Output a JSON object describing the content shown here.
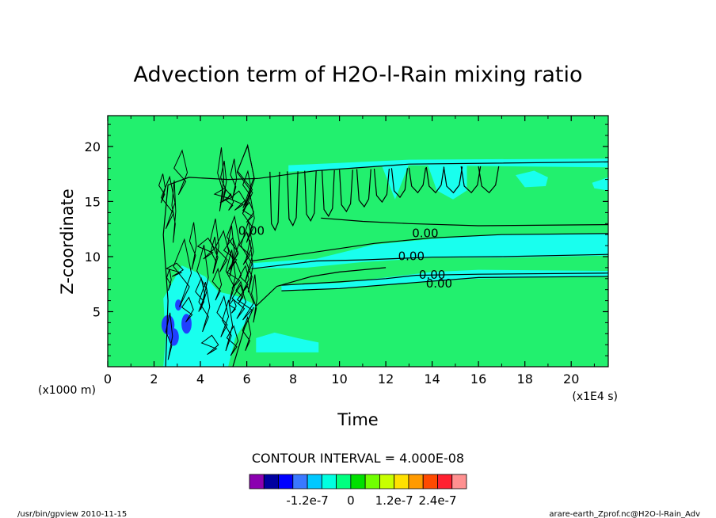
{
  "chart_data": {
    "type": "heatmap",
    "title": "Advection term of H2O-l-Rain mixing ratio",
    "xlabel": "Time",
    "ylabel": "Z-coordinate",
    "x_unit": "(x1E4 s)",
    "y_unit": "(x1000 m)",
    "xlim": [
      0,
      21.6
    ],
    "ylim": [
      0,
      22.8
    ],
    "x_ticks": [
      0,
      2,
      4,
      6,
      8,
      10,
      12,
      14,
      16,
      18,
      20
    ],
    "y_ticks": [
      5,
      10,
      15,
      20
    ],
    "contour_interval_text": "CONTOUR INTERVAL = 4.000E-08",
    "contour_labels": [
      "0.00",
      "0.00",
      "0.00",
      "0.00",
      "0.00"
    ],
    "colorbar": {
      "colors": [
        "#8b00b0",
        "#0000a0",
        "#0000ff",
        "#3a78ff",
        "#00c8ff",
        "#00ffe0",
        "#00ff80",
        "#00e000",
        "#70ff00",
        "#c8ff00",
        "#ffe000",
        "#ff9a00",
        "#ff4a00",
        "#ff2030",
        "#ff9090"
      ],
      "tick_labels": [
        "-1.2e-7",
        "0",
        "1.2e-7",
        "2.4e-7"
      ],
      "tick_positions": [
        -1.2e-07,
        0,
        1.2e-07,
        2.4e-07
      ]
    },
    "background_color": "#22f06e",
    "negative_color": "#19ffee",
    "strong_negative_color": "#2040ff"
  },
  "footer": {
    "left": "/usr/bin/gpview   2010-11-15",
    "right": "arare-earth_Zprof.nc@H2O-l-Rain_Adv"
  }
}
